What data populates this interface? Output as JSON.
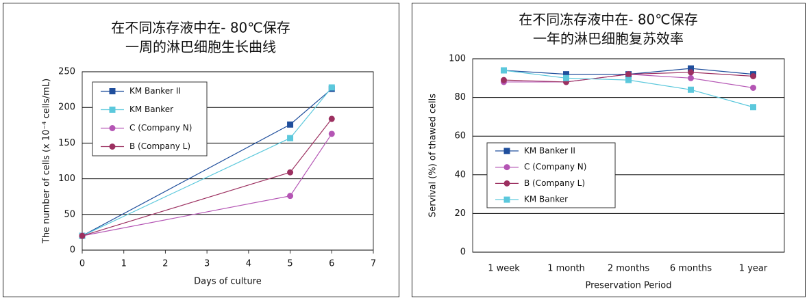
{
  "chart_data": [
    {
      "type": "line",
      "title": [
        "在不同冻存液中在- 80℃保存",
        "一周的淋巴细胞生长曲线"
      ],
      "xlabel": "Days of culture",
      "ylabel": "The number of cells (x 10⁻⁴ cells/mL)",
      "x": [
        0,
        5,
        6
      ],
      "xlim": [
        0,
        7
      ],
      "xticks": [
        0,
        1,
        2,
        3,
        4,
        5,
        6,
        7
      ],
      "ylim": [
        0,
        250
      ],
      "yticks": [
        0,
        50,
        100,
        150,
        200,
        250
      ],
      "grid": true,
      "series": [
        {
          "name": "KM Banker II",
          "color": "#1f4e9c",
          "marker": "square",
          "values": [
            20,
            176,
            226
          ]
        },
        {
          "name": "KM Banker",
          "color": "#5bc8dc",
          "marker": "square",
          "values": [
            20,
            157,
            228
          ]
        },
        {
          "name": "C (Company N)",
          "color": "#b455b4",
          "marker": "circle",
          "values": [
            20,
            76,
            163
          ]
        },
        {
          "name": "B (Company L)",
          "color": "#9c3060",
          "marker": "circle",
          "values": [
            20,
            109,
            184
          ]
        }
      ]
    },
    {
      "type": "line",
      "title": [
        "在不同冻存液中在- 80℃保存",
        "一年的淋巴细胞复苏效率"
      ],
      "xlabel": "Preservation Period",
      "ylabel": "Servival (%) of thawed cells",
      "categories": [
        "1 week",
        "1 month",
        "2 months",
        "6 months",
        "1 year"
      ],
      "ylim": [
        0,
        100
      ],
      "yticks": [
        0,
        20,
        40,
        60,
        80,
        100
      ],
      "grid": true,
      "series": [
        {
          "name": "KM Banker II",
          "color": "#1f4e9c",
          "marker": "square",
          "values": [
            94,
            92,
            92,
            95,
            92
          ]
        },
        {
          "name": "C (Company N)",
          "color": "#b455b4",
          "marker": "circle",
          "values": [
            88,
            88,
            92,
            90,
            85
          ]
        },
        {
          "name": "B (Company L)",
          "color": "#9c3060",
          "marker": "circle",
          "values": [
            89,
            88,
            92,
            93,
            91
          ]
        },
        {
          "name": "KM Banker",
          "color": "#5bc8dc",
          "marker": "square",
          "values": [
            94,
            90,
            89,
            84,
            75
          ]
        }
      ]
    }
  ]
}
